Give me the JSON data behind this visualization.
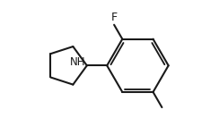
{
  "bg_color": "#ffffff",
  "line_color": "#1a1a1a",
  "line_width": 1.5,
  "font_size_label": 9,
  "F_label": "F",
  "NH_label": "NH",
  "bond_color": "#1a1a1a"
}
